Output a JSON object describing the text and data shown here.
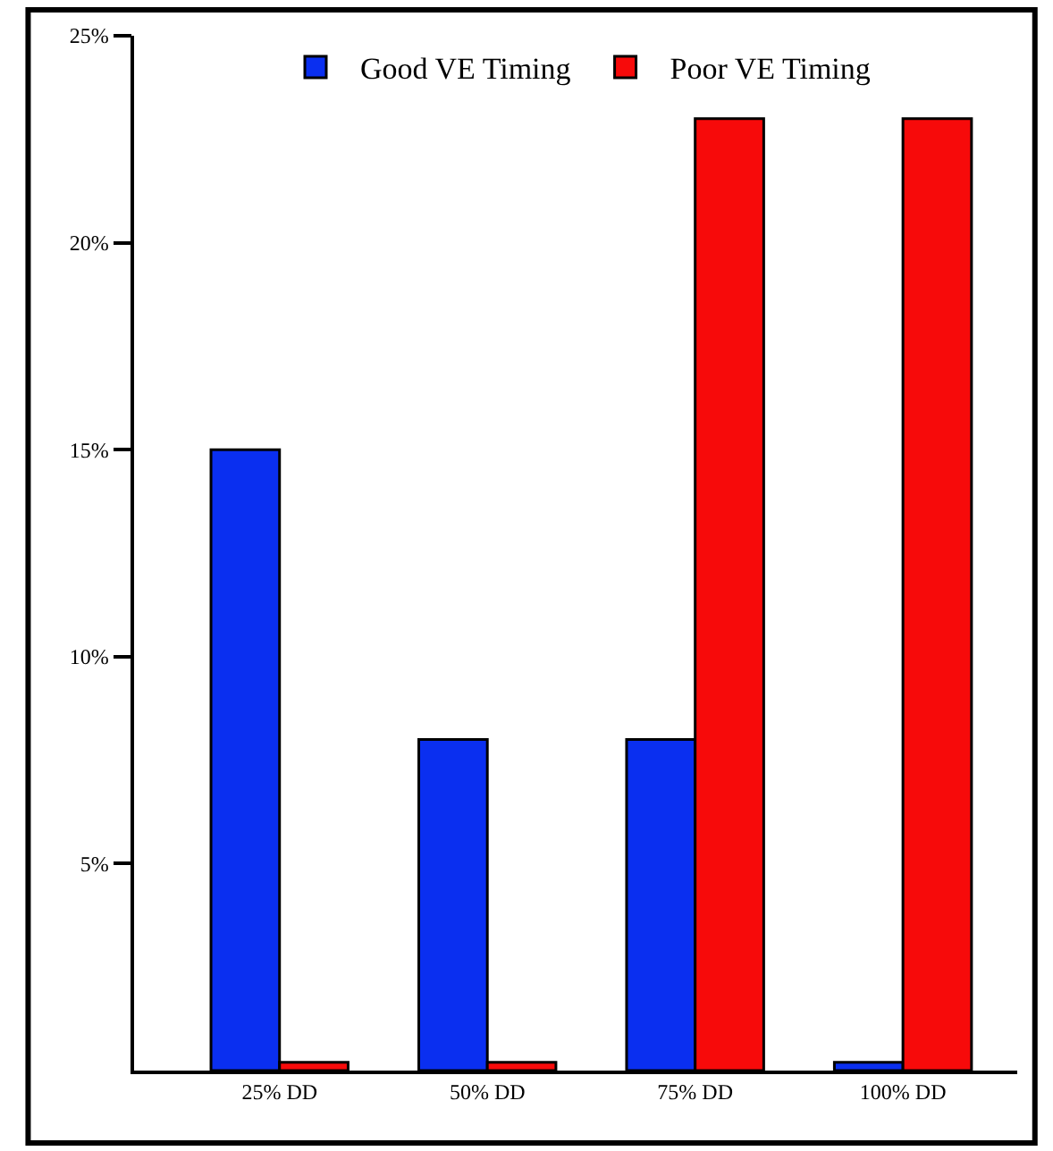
{
  "chart_data": {
    "type": "bar",
    "categories": [
      "25% DD",
      "50% DD",
      "75% DD",
      "100% DD"
    ],
    "series": [
      {
        "name": "Good VE Timing",
        "color": "#0a2ff0",
        "values": [
          15,
          8,
          8,
          0.2
        ]
      },
      {
        "name": "Poor VE Timing",
        "color": "#f70a0a",
        "values": [
          0.2,
          0.2,
          23,
          23
        ]
      }
    ],
    "ylim": [
      0,
      25
    ],
    "yticks": [
      {
        "value": 5,
        "label": "5%"
      },
      {
        "value": 10,
        "label": "10%"
      },
      {
        "value": 15,
        "label": "15%"
      },
      {
        "value": 20,
        "label": "20%"
      },
      {
        "value": 25,
        "label": "25%"
      }
    ],
    "legend": "top"
  }
}
